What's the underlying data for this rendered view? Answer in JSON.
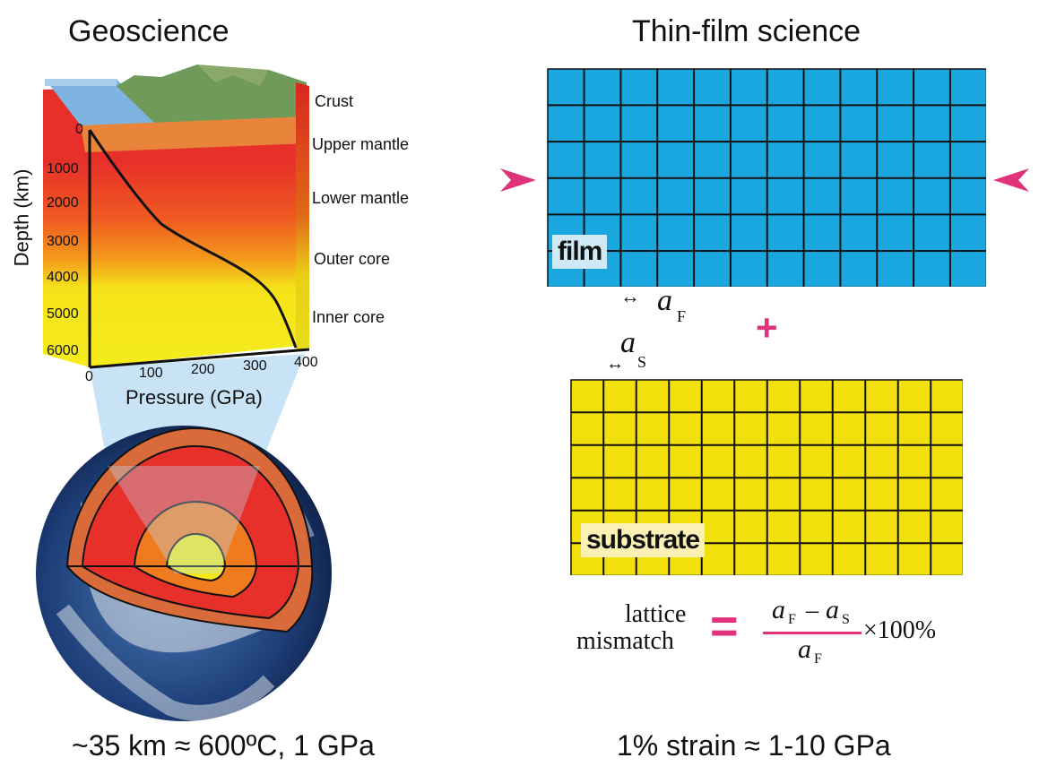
{
  "titles": {
    "left": "Geoscience",
    "right": "Thin-film science"
  },
  "layers": [
    "Crust",
    "Upper mantle",
    "Lower mantle",
    "Outer core",
    "Inner core"
  ],
  "depth_axis": {
    "title": "Depth (km)",
    "ticks": [
      "0",
      "1000",
      "2000",
      "3000",
      "4000",
      "5000",
      "6000"
    ]
  },
  "pressure_axis": {
    "title": "Pressure (GPa)",
    "ticks": [
      "0",
      "100",
      "200",
      "300",
      "400"
    ]
  },
  "film": {
    "label": "film",
    "lattice_symbol": "a",
    "lattice_subscript": "F",
    "color": "#1aa7e0"
  },
  "substrate": {
    "label": "substrate",
    "lattice_symbol": "a",
    "lattice_subscript": "S",
    "color": "#f2e00c"
  },
  "plus_sign": "+",
  "formula": {
    "lhs_line1": "lattice",
    "lhs_line2": "mismatch",
    "equals": "=",
    "numerator_a1": "a",
    "numerator_sub1": "F",
    "minus": "–",
    "numerator_a2": "a",
    "numerator_sub2": "S",
    "denominator_a": "a",
    "denominator_sub": "F",
    "times": "×100%"
  },
  "captions": {
    "left": "~35 km ≈ 600ºC, 1 GPa",
    "right": "1% strain ≈ 1-10 GPa"
  },
  "colors": {
    "accent": "#e0337a",
    "crust": "#e8853a",
    "mantle": "#e8302a",
    "outer_core": "#f07a1e",
    "inner_core": "#f4e81a",
    "ocean": "#6fa8dc"
  }
}
